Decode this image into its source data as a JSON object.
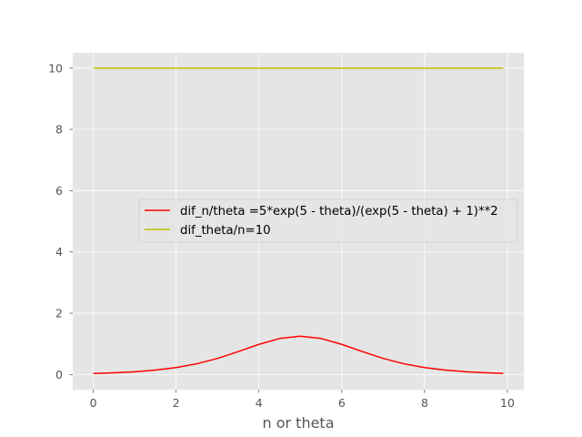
{
  "chart_data": {
    "type": "line",
    "title": "",
    "xlabel": "n or theta",
    "ylabel": "",
    "xlim": [
      -0.495,
      10.395
    ],
    "ylim": [
      -0.4951,
      10.4998
    ],
    "xticks": [
      0,
      2,
      4,
      6,
      8,
      10
    ],
    "yticks": [
      0,
      2,
      4,
      6,
      8,
      10
    ],
    "grid": true,
    "legend_position": "center-right",
    "series": [
      {
        "name": "dif_n/theta =5*exp(5 - theta)/(exp(5 - theta) + 1)**2",
        "color": "#ff0000",
        "x": [
          0,
          0.5,
          1,
          1.5,
          2,
          2.5,
          3,
          3.5,
          4,
          4.5,
          5,
          5.5,
          6,
          6.5,
          7,
          7.5,
          8,
          8.5,
          9,
          9.5,
          9.9
        ],
        "y": [
          0.033,
          0.055,
          0.089,
          0.144,
          0.226,
          0.35,
          0.525,
          0.747,
          0.983,
          1.175,
          1.25,
          1.175,
          0.983,
          0.747,
          0.525,
          0.35,
          0.226,
          0.144,
          0.089,
          0.055,
          0.037
        ]
      },
      {
        "name": "dif_theta/n=10",
        "color": "#bfbf00",
        "x": [
          0,
          9.9
        ],
        "y": [
          10,
          10
        ]
      }
    ]
  },
  "colors": {
    "plot_background": "#e5e5e5",
    "grid": "#ffffff",
    "tick_text": "#555555"
  }
}
